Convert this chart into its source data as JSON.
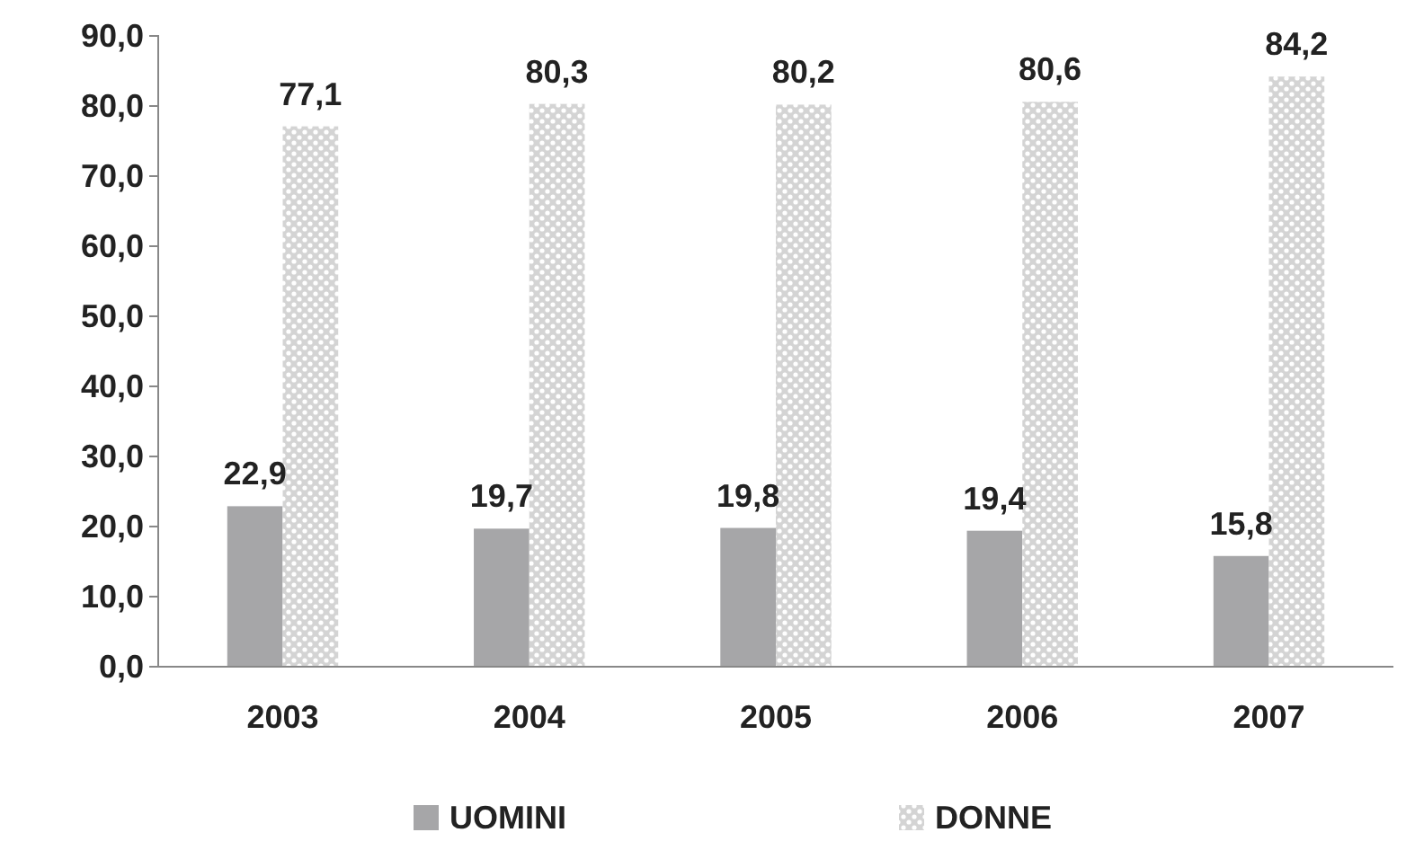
{
  "chart_data": {
    "type": "bar",
    "categories": [
      "2003",
      "2004",
      "2005",
      "2006",
      "2007"
    ],
    "series": [
      {
        "name": "UOMINI",
        "color": "#a6a6a8",
        "values": [
          22.9,
          19.7,
          19.8,
          19.4,
          15.8
        ],
        "value_labels": [
          "22,9",
          "19,7",
          "19,8",
          "19,4",
          "15,8"
        ]
      },
      {
        "name": "DONNE",
        "color": "#d4d4d4",
        "values": [
          77.1,
          80.3,
          80.2,
          80.6,
          84.2
        ],
        "value_labels": [
          "77,1",
          "80,3",
          "80,2",
          "80,6",
          "84,2"
        ]
      }
    ],
    "ylim": [
      0,
      90
    ],
    "yticks": [
      {
        "value": 0,
        "label": "0,0"
      },
      {
        "value": 10,
        "label": "10,0"
      },
      {
        "value": 20,
        "label": "20,0"
      },
      {
        "value": 30,
        "label": "30,0"
      },
      {
        "value": 40,
        "label": "40,0"
      },
      {
        "value": 50,
        "label": "50,0"
      },
      {
        "value": 60,
        "label": "60,0"
      },
      {
        "value": 70,
        "label": "70,0"
      },
      {
        "value": 80,
        "label": "80,0"
      },
      {
        "value": 90,
        "label": "90,0"
      }
    ],
    "grid": false,
    "legend": "bottom"
  }
}
